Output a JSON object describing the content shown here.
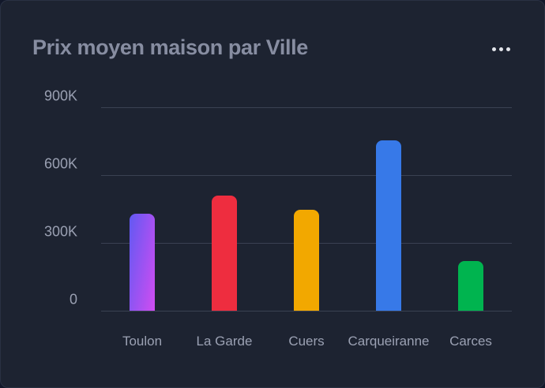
{
  "card": {
    "title": "Prix moyen maison par Ville",
    "menu_icon": "ellipsis-horizontal-icon",
    "colors": {
      "background": "#1d2331",
      "border": "#2a3143",
      "title_text": "#878da1",
      "axis_text": "#9aa0b2",
      "gridline": "#3a4152",
      "menu_dots": "#e2e4ea"
    }
  },
  "chart_data": {
    "type": "bar",
    "title": "Prix moyen maison par Ville",
    "categories": [
      "Toulon",
      "La Garde",
      "Cuers",
      "Carqueiranne",
      "Carces"
    ],
    "values": [
      430000,
      510000,
      445000,
      755000,
      220000
    ],
    "bar_colors": [
      {
        "from": "#6159f2",
        "to": "#d14df1"
      },
      {
        "from": "#ee2d3f",
        "to": "#ee2d3f"
      },
      {
        "from": "#f2a800",
        "to": "#f2a800"
      },
      {
        "from": "#3779e8",
        "to": "#3779e8"
      },
      {
        "from": "#00b44f",
        "to": "#00b44f"
      }
    ],
    "xlabel": "",
    "ylabel": "",
    "ylim": [
      0,
      900000
    ],
    "y_ticks": [
      {
        "label": "900K",
        "value": 900000
      },
      {
        "label": "600K",
        "value": 600000
      },
      {
        "label": "300K",
        "value": 300000
      },
      {
        "label": "0",
        "value": 0
      }
    ],
    "grid": true,
    "legend": false
  }
}
